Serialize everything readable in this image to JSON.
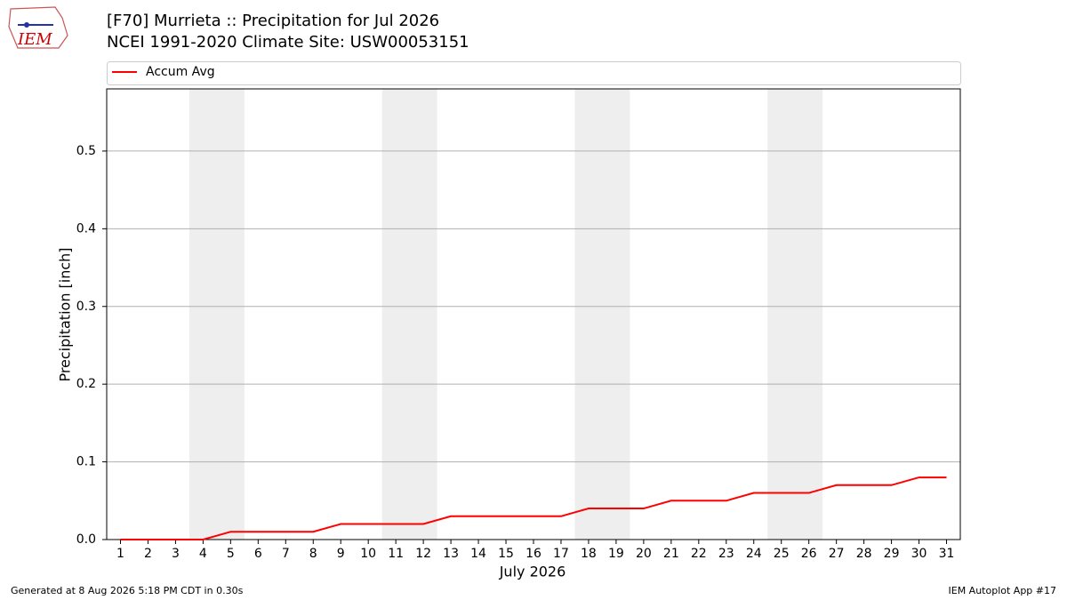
{
  "chart_data": {
    "type": "line",
    "title": "[F70] Murrieta :: Precipitation for Jul 2026",
    "subtitle": "NCEI 1991-2020 Climate Site: USW00053151",
    "xlabel": "July 2026",
    "ylabel": "Precipitation [inch]",
    "x": [
      1,
      2,
      3,
      4,
      5,
      6,
      7,
      8,
      9,
      10,
      11,
      12,
      13,
      14,
      15,
      16,
      17,
      18,
      19,
      20,
      21,
      22,
      23,
      24,
      25,
      26,
      27,
      28,
      29,
      30,
      31
    ],
    "series": [
      {
        "name": "Accum Avg",
        "color": "#ff0000",
        "values": [
          0,
          0,
          0,
          0,
          0.01,
          0.01,
          0.01,
          0.01,
          0.02,
          0.02,
          0.02,
          0.02,
          0.03,
          0.03,
          0.03,
          0.03,
          0.03,
          0.04,
          0.04,
          0.04,
          0.05,
          0.05,
          0.05,
          0.06,
          0.06,
          0.06,
          0.07,
          0.07,
          0.07,
          0.08,
          0.08
        ]
      }
    ],
    "xlim": [
      0.5,
      31.5
    ],
    "xticks": [
      1,
      2,
      3,
      4,
      5,
      6,
      7,
      8,
      9,
      10,
      11,
      12,
      13,
      14,
      15,
      16,
      17,
      18,
      19,
      20,
      21,
      22,
      23,
      24,
      25,
      26,
      27,
      28,
      29,
      30,
      31
    ],
    "ylim": [
      0,
      0.58
    ],
    "yticks": [
      {
        "value": 0,
        "label": "0.0"
      },
      0.1,
      0.2,
      0.3,
      0.4,
      0.5
    ],
    "grid": true,
    "legend": "top",
    "shaded_spans": [
      [
        3.5,
        5.5
      ],
      [
        10.5,
        12.5
      ],
      [
        17.5,
        19.5
      ],
      [
        24.5,
        26.5
      ]
    ],
    "shade_color": "#eeeeee"
  },
  "logo": "IEM",
  "footer": {
    "left": "Generated at 8 Aug 2026 5:18 PM CDT in 0.30s",
    "right": "IEM Autoplot App #17"
  }
}
